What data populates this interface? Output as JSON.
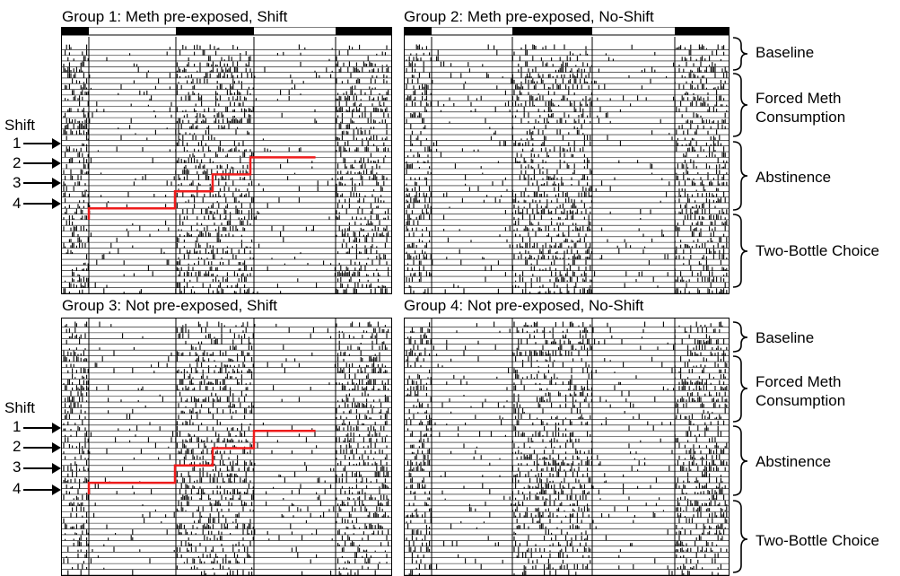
{
  "panels": [
    {
      "id": "g1",
      "title": "Group 1: Meth pre-exposed, Shift",
      "shift": true,
      "seed": 11
    },
    {
      "id": "g2",
      "title": "Group 2: Meth pre-exposed, No-Shift",
      "shift": false,
      "seed": 23
    },
    {
      "id": "g3",
      "title": "Group 3: Not pre-exposed, Shift",
      "shift": true,
      "seed": 37
    },
    {
      "id": "g4",
      "title": "Group 4: Not pre-exposed, No-Shift",
      "shift": false,
      "seed": 51
    }
  ],
  "shift_label": "Shift",
  "shift_numbers": [
    "1",
    "2",
    "3",
    "4"
  ],
  "phases_top": [
    "Baseline",
    "Forced Meth\nConsumption",
    "Abstinence",
    "Two-Bottle Choice"
  ],
  "phases_bottom": [
    "Baseline",
    "Forced Meth\nConsumption",
    "Abstinence",
    "Two-Bottle Choice"
  ],
  "colors": {
    "shift_line": "#ee1c1c",
    "activity": "#000000"
  }
}
